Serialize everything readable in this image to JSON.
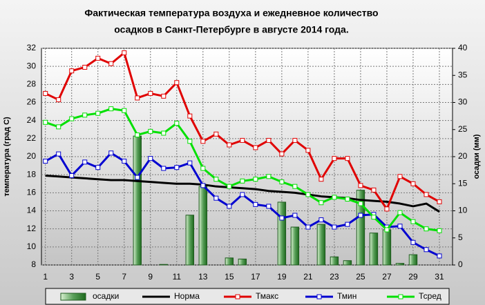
{
  "chart_data": {
    "type": "line",
    "title": [
      "Фактическая температура воздуха и ежедневное количество",
      "осадков в Санкт-Петербурге в августе 2014 года."
    ],
    "y_label": "температура (град С)",
    "y2_label": "осадки (мм)",
    "x": [
      1,
      2,
      3,
      4,
      5,
      6,
      7,
      8,
      9,
      10,
      11,
      12,
      13,
      14,
      15,
      16,
      17,
      18,
      19,
      20,
      21,
      22,
      23,
      24,
      25,
      26,
      27,
      28,
      29,
      30,
      31
    ],
    "xlim": [
      0.7,
      32
    ],
    "xticks": [
      1,
      3,
      5,
      7,
      9,
      11,
      13,
      15,
      17,
      19,
      21,
      23,
      25,
      27,
      29,
      31
    ],
    "ylim": [
      8,
      32
    ],
    "yticks": [
      8,
      10,
      12,
      14,
      16,
      18,
      20,
      22,
      24,
      26,
      28,
      30,
      32
    ],
    "y2lim": [
      0,
      40
    ],
    "y2ticks": [
      0,
      5,
      10,
      15,
      20,
      25,
      30,
      35,
      40
    ],
    "grid": true,
    "series": [
      {
        "name": "осадки",
        "type": "bar",
        "axis": "y2",
        "color": "#3a8a3a",
        "values": [
          0,
          0,
          0,
          0,
          0,
          0,
          0,
          23.8,
          0,
          0.1,
          0,
          9.2,
          14.5,
          0,
          1.3,
          1.1,
          0,
          0,
          11.6,
          7,
          0,
          7.5,
          1.5,
          0.8,
          13.8,
          5.9,
          6.5,
          0.3,
          1.9,
          0,
          0
        ]
      },
      {
        "name": "Норма",
        "type": "line",
        "color": "#000000",
        "values": [
          17.9,
          17.8,
          17.7,
          17.6,
          17.5,
          17.4,
          17.4,
          17.3,
          17.2,
          17.1,
          17,
          17,
          16.9,
          16.7,
          16.6,
          16.5,
          16.4,
          16.2,
          16.1,
          16,
          15.8,
          15.6,
          15.5,
          15.4,
          15.2,
          15.1,
          15,
          14.8,
          14.5,
          14.8,
          13.9
        ]
      },
      {
        "name": "Тмакс",
        "type": "line",
        "color": "#e00000",
        "values": [
          27,
          26.3,
          29.5,
          29.9,
          30.9,
          30.3,
          31.5,
          26.5,
          27,
          26.7,
          28.2,
          24.5,
          21.7,
          22.5,
          21.3,
          21.8,
          21,
          21.8,
          20.3,
          21.8,
          20.7,
          17.5,
          19.8,
          19.8,
          16.8,
          16.3,
          14.2,
          17.8,
          17,
          15.8,
          15
        ]
      },
      {
        "name": "Тмин",
        "type": "line",
        "color": "#0000d0",
        "values": [
          19.5,
          20.3,
          17.9,
          19.4,
          18.8,
          20.4,
          19.5,
          17.7,
          19.8,
          18.7,
          18.8,
          19.3,
          16.8,
          15.4,
          14.5,
          15.8,
          14.7,
          14.5,
          13.2,
          13.5,
          12.2,
          13,
          12.2,
          12.5,
          13.5,
          13.6,
          12.2,
          12.3,
          10.5,
          9.7,
          9
        ]
      },
      {
        "name": "Тсред",
        "type": "line",
        "color": "#00e000",
        "values": [
          23.8,
          23.3,
          24.2,
          24.6,
          24.8,
          25.3,
          25.1,
          22.4,
          22.8,
          22.6,
          23.7,
          21.7,
          18.7,
          17.5,
          16.7,
          17.3,
          17.5,
          17.8,
          17.2,
          16.7,
          15.8,
          14.9,
          15.5,
          15.3,
          14.8,
          13.3,
          11.9,
          13.8,
          12.8,
          12,
          11.8
        ]
      }
    ]
  }
}
